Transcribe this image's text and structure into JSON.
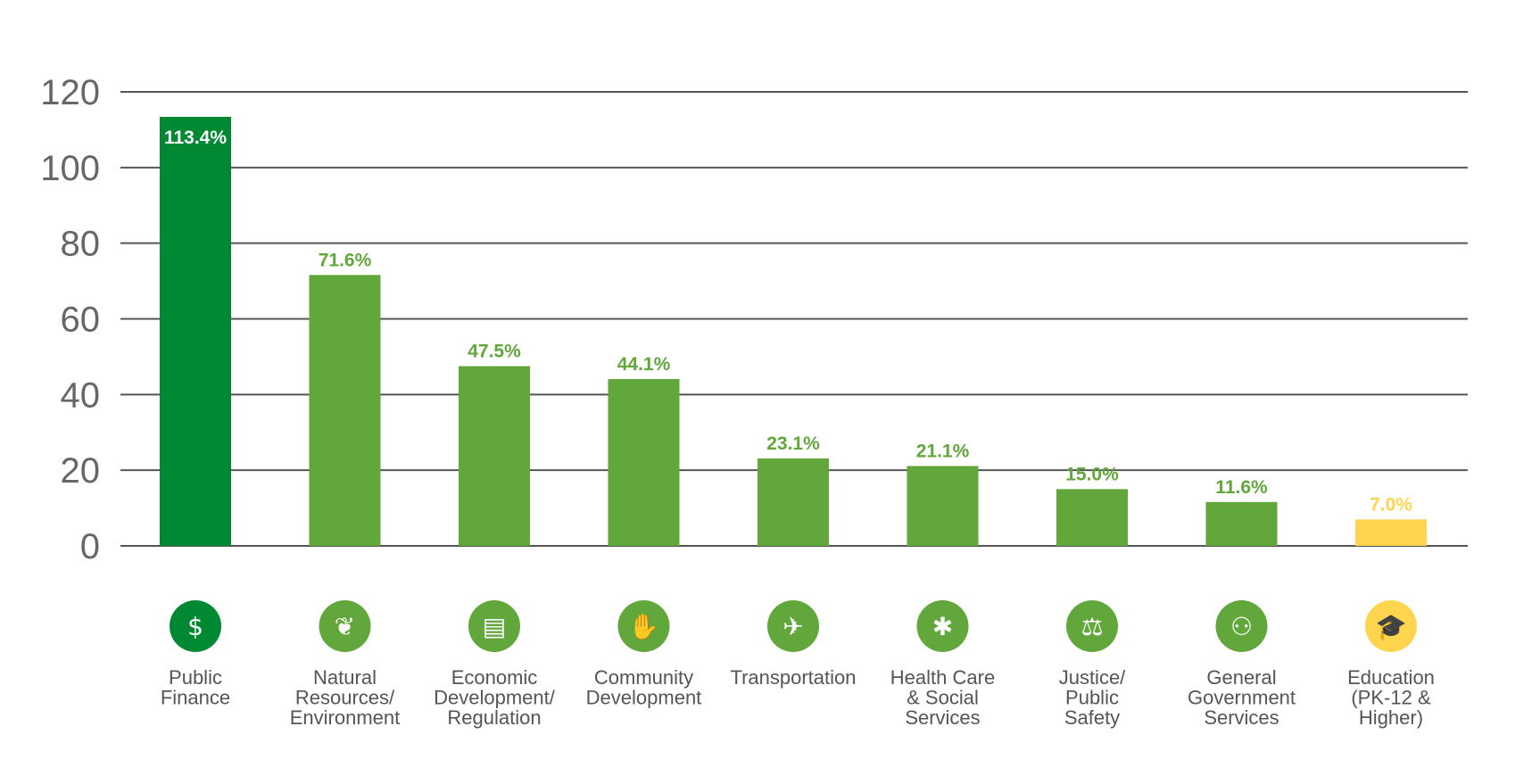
{
  "chart_data": {
    "type": "bar",
    "title": "",
    "xlabel": "",
    "ylabel": "",
    "ylim": [
      0,
      120
    ],
    "yticks": [
      0,
      20,
      40,
      60,
      80,
      100,
      120
    ],
    "yticks_labels": [
      "0",
      "20",
      "40",
      "60",
      "80",
      "100",
      "120"
    ],
    "grid": true,
    "legend": "none",
    "categories": [
      {
        "label": [
          "Public",
          "Finance"
        ],
        "icon": "public-finance-icon",
        "color": "#008932",
        "label_color": "#ffffff",
        "label_inside": true,
        "value_label": "113.4%"
      },
      {
        "label": [
          "Natural",
          "Resources/",
          "Environment"
        ],
        "icon": "leaf-icon",
        "color": "#62A73B",
        "label_color": "#62A73B",
        "label_inside": false,
        "value_label": "71.6%"
      },
      {
        "label": [
          "Economic",
          "Development/",
          "Regulation"
        ],
        "icon": "presentation-chart-icon",
        "color": "#62A73B",
        "label_color": "#62A73B",
        "label_inside": false,
        "value_label": "47.5%"
      },
      {
        "label": [
          "Community",
          "Development"
        ],
        "icon": "handshake-icon",
        "color": "#62A73B",
        "label_color": "#62A73B",
        "label_inside": false,
        "value_label": "44.1%"
      },
      {
        "label": [
          "Transportation"
        ],
        "icon": "airplane-icon",
        "color": "#62A73B",
        "label_color": "#62A73B",
        "label_inside": false,
        "value_label": "23.1%"
      },
      {
        "label": [
          "Health Care",
          "& Social",
          "Services"
        ],
        "icon": "medical-star-icon",
        "color": "#62A73B",
        "label_color": "#62A73B",
        "label_inside": false,
        "value_label": "21.1%"
      },
      {
        "label": [
          "Justice/",
          "Public",
          "Safety"
        ],
        "icon": "scales-of-justice-icon",
        "color": "#62A73B",
        "label_color": "#62A73B",
        "label_inside": false,
        "value_label": "15.0%"
      },
      {
        "label": [
          "General",
          "Government",
          "Services"
        ],
        "icon": "org-chart-icon",
        "color": "#62A73B",
        "label_color": "#62A73B",
        "label_inside": false,
        "value_label": "11.6%"
      },
      {
        "label": [
          "Education",
          "(PK-12 &",
          "Higher)"
        ],
        "icon": "graduation-cap-icon",
        "color": "#FFD54F",
        "label_color": "#FFD54F",
        "label_inside": false,
        "value_label": "7.0%"
      }
    ],
    "values": [
      113.4,
      71.6,
      47.5,
      44.1,
      23.1,
      21.1,
      15.0,
      11.6,
      7.0
    ]
  },
  "colors": {
    "grid_line": "#555555",
    "tick_text": "#666666",
    "category_text": "#555555",
    "icon_foreground": "#ffffff"
  },
  "icon_glyphs": {
    "public-finance-icon": "$",
    "leaf-icon": "❦",
    "presentation-chart-icon": "▤",
    "handshake-icon": "✋",
    "airplane-icon": "✈",
    "medical-star-icon": "✱",
    "scales-of-justice-icon": "⚖",
    "org-chart-icon": "⚇",
    "graduation-cap-icon": "🎓"
  }
}
